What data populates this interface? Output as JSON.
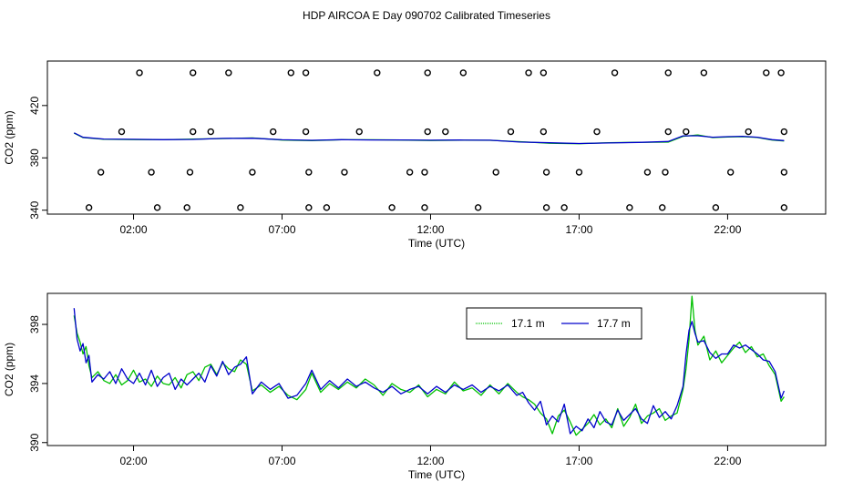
{
  "title": "HDP AIRCOA E  Day 090702  Calibrated Timeseries",
  "colors": {
    "series_17_1": "#00c000",
    "series_17_7": "#0000cc",
    "axis": "#000000"
  },
  "chart_data": [
    {
      "type": "line",
      "xlabel": "Time (UTC)",
      "ylabel": "CO2 (ppm)",
      "xlim": [
        -0.9,
        25.3
      ],
      "ylim": [
        337,
        454
      ],
      "xticks": [
        2,
        7,
        12,
        17,
        22
      ],
      "xtick_labels": [
        "02:00",
        "07:00",
        "12:00",
        "17:00",
        "22:00"
      ],
      "yticks": [
        340,
        380,
        420
      ],
      "ytick_labels": [
        "340",
        "380",
        "420"
      ],
      "grid": false,
      "series": [
        {
          "name": "17.1 m",
          "color": "#00c000",
          "x": [
            0.0,
            0.3,
            1.0,
            2.0,
            3.0,
            4.0,
            5.0,
            6.0,
            7.0,
            8.0,
            9.0,
            10.0,
            11.0,
            12.0,
            13.0,
            14.0,
            15.0,
            16.0,
            17.0,
            18.0,
            19.0,
            20.0,
            20.5,
            21.0,
            21.5,
            22.0,
            22.5,
            23.0,
            23.5,
            23.9
          ],
          "y": [
            399,
            395.5,
            394.2,
            394,
            393.8,
            394.3,
            394.7,
            395.2,
            393.6,
            393.2,
            393.8,
            393.8,
            393.6,
            393.3,
            393.5,
            393.4,
            392.4,
            391.2,
            390.8,
            391.6,
            391.9,
            392.0,
            396.5,
            397.5,
            395.5,
            396.0,
            396.2,
            395.6,
            393.6,
            392.9
          ]
        },
        {
          "name": "17.7 m",
          "color": "#0000cc",
          "x": [
            0.0,
            0.3,
            1.0,
            2.0,
            3.0,
            4.0,
            5.0,
            6.0,
            7.0,
            8.0,
            9.0,
            10.0,
            11.0,
            12.0,
            13.0,
            14.0,
            15.0,
            16.0,
            17.0,
            18.0,
            19.0,
            20.0,
            20.5,
            21.0,
            21.5,
            22.0,
            22.5,
            23.0,
            23.5,
            23.9
          ],
          "y": [
            399.1,
            395.7,
            394.4,
            394.2,
            393.9,
            394.1,
            394.9,
            395.0,
            393.8,
            393.4,
            393.9,
            393.7,
            393.7,
            393.5,
            393.6,
            393.5,
            392.1,
            391.5,
            391.0,
            391.4,
            391.8,
            392.5,
            396.8,
            396.9,
            395.8,
            396.2,
            396.5,
            395.8,
            393.9,
            393.2
          ]
        }
      ],
      "markers": {
        "x": [
          2.2,
          4.0,
          5.2,
          7.3,
          7.8,
          10.2,
          11.9,
          13.1,
          15.3,
          15.8,
          18.2,
          20.0,
          21.2,
          23.3,
          23.8,
          1.6,
          4.0,
          4.6,
          6.7,
          7.8,
          9.6,
          11.9,
          12.5,
          14.7,
          15.8,
          17.6,
          20.0,
          20.6,
          22.7,
          23.9,
          0.9,
          2.6,
          3.9,
          6.0,
          7.9,
          9.1,
          11.3,
          11.8,
          14.2,
          15.9,
          17.0,
          19.3,
          19.9,
          22.1,
          23.9,
          0.5,
          2.8,
          3.8,
          5.6,
          7.9,
          8.5,
          10.7,
          11.8,
          13.6,
          15.9,
          16.5,
          18.7,
          19.8,
          21.6,
          23.9
        ],
        "y": [
          445,
          445,
          445,
          445,
          445,
          445,
          445,
          445,
          445,
          445,
          445,
          445,
          445,
          445,
          445,
          400,
          400,
          400,
          400,
          400,
          400,
          400,
          400,
          400,
          400,
          400,
          400,
          400,
          400,
          400,
          369,
          369,
          369,
          369,
          369,
          369,
          369,
          369,
          369,
          369,
          369,
          369,
          369,
          369,
          369,
          342,
          342,
          342,
          342,
          342,
          342,
          342,
          342,
          342,
          342,
          342,
          342,
          342,
          342,
          342
        ]
      }
    },
    {
      "type": "line",
      "xlabel": "Time (UTC)",
      "ylabel": "CO2 (ppm)",
      "xlim": [
        -0.9,
        25.3
      ],
      "ylim": [
        389.8,
        400.1
      ],
      "xticks": [
        2,
        7,
        12,
        17,
        22
      ],
      "xtick_labels": [
        "02:00",
        "07:00",
        "12:00",
        "17:00",
        "22:00"
      ],
      "yticks": [
        390,
        394,
        398
      ],
      "ytick_labels": [
        "390",
        "394",
        "398"
      ],
      "grid": false,
      "legend": "top-center",
      "series": [
        {
          "name": "17.1 m",
          "color": "#00c000",
          "x": [
            0.0,
            0.1,
            0.2,
            0.3,
            0.4,
            0.5,
            0.6,
            0.8,
            1.0,
            1.2,
            1.4,
            1.6,
            1.8,
            2.0,
            2.2,
            2.4,
            2.6,
            2.8,
            3.0,
            3.2,
            3.4,
            3.6,
            3.8,
            4.0,
            4.2,
            4.4,
            4.6,
            4.8,
            5.0,
            5.2,
            5.4,
            5.6,
            5.8,
            6.0,
            6.3,
            6.6,
            6.9,
            7.2,
            7.5,
            7.8,
            8.0,
            8.3,
            8.6,
            8.9,
            9.2,
            9.5,
            9.8,
            10.1,
            10.4,
            10.7,
            11.0,
            11.3,
            11.6,
            11.9,
            12.2,
            12.5,
            12.8,
            13.1,
            13.4,
            13.7,
            14.0,
            14.3,
            14.6,
            14.9,
            15.1,
            15.3,
            15.5,
            15.7,
            15.9,
            16.1,
            16.3,
            16.5,
            16.7,
            16.9,
            17.1,
            17.3,
            17.5,
            17.7,
            17.9,
            18.1,
            18.3,
            18.5,
            18.7,
            18.9,
            19.1,
            19.3,
            19.5,
            19.7,
            19.9,
            20.1,
            20.3,
            20.5,
            20.6,
            20.7,
            20.8,
            20.9,
            21.0,
            21.2,
            21.4,
            21.6,
            21.8,
            22.0,
            22.2,
            22.4,
            22.6,
            22.8,
            23.0,
            23.2,
            23.4,
            23.6,
            23.8,
            23.9
          ],
          "y": [
            398.6,
            397.4,
            396.8,
            396.0,
            396.5,
            395.2,
            394.4,
            394.8,
            394.2,
            394.0,
            394.6,
            393.9,
            394.2,
            394.9,
            394.1,
            394.3,
            393.8,
            394.5,
            394.0,
            393.9,
            394.4,
            393.7,
            394.6,
            394.8,
            394.2,
            395.1,
            395.3,
            394.6,
            395.4,
            395.0,
            394.8,
            395.6,
            395.3,
            393.5,
            393.9,
            393.4,
            393.8,
            393.2,
            392.9,
            393.6,
            394.7,
            393.4,
            394.0,
            393.6,
            394.1,
            393.7,
            394.3,
            393.9,
            393.2,
            394.0,
            393.6,
            393.4,
            393.9,
            393.1,
            393.6,
            393.3,
            394.1,
            393.5,
            393.7,
            393.2,
            393.9,
            393.3,
            394.0,
            393.4,
            393.1,
            392.9,
            392.6,
            392.0,
            391.6,
            390.6,
            391.8,
            392.2,
            391.4,
            390.5,
            390.9,
            391.3,
            391.9,
            391.2,
            391.6,
            391.0,
            392.3,
            391.1,
            391.7,
            392.6,
            391.3,
            391.8,
            392.0,
            392.3,
            391.5,
            391.8,
            392.0,
            393.6,
            395.0,
            397.0,
            399.9,
            397.6,
            396.6,
            397.2,
            395.6,
            396.2,
            395.4,
            395.9,
            396.4,
            396.8,
            396.1,
            396.5,
            395.8,
            396.0,
            395.2,
            394.6,
            392.8,
            393.1
          ]
        },
        {
          "name": "17.7 m",
          "color": "#0000cc",
          "x": [
            0.0,
            0.1,
            0.2,
            0.3,
            0.4,
            0.5,
            0.6,
            0.8,
            1.0,
            1.2,
            1.4,
            1.6,
            1.8,
            2.0,
            2.2,
            2.4,
            2.6,
            2.8,
            3.0,
            3.2,
            3.4,
            3.6,
            3.8,
            4.0,
            4.2,
            4.4,
            4.6,
            4.8,
            5.0,
            5.2,
            5.4,
            5.6,
            5.8,
            6.0,
            6.3,
            6.6,
            6.9,
            7.2,
            7.5,
            7.8,
            8.0,
            8.3,
            8.6,
            8.9,
            9.2,
            9.5,
            9.8,
            10.1,
            10.4,
            10.7,
            11.0,
            11.3,
            11.6,
            11.9,
            12.2,
            12.5,
            12.8,
            13.1,
            13.4,
            13.7,
            14.0,
            14.3,
            14.6,
            14.9,
            15.1,
            15.3,
            15.5,
            15.7,
            15.9,
            16.1,
            16.3,
            16.5,
            16.7,
            16.9,
            17.1,
            17.3,
            17.5,
            17.7,
            17.9,
            18.1,
            18.3,
            18.5,
            18.7,
            18.9,
            19.1,
            19.3,
            19.5,
            19.7,
            19.9,
            20.1,
            20.3,
            20.5,
            20.6,
            20.7,
            20.8,
            20.9,
            21.0,
            21.2,
            21.4,
            21.6,
            21.8,
            22.0,
            22.2,
            22.4,
            22.6,
            22.8,
            23.0,
            23.2,
            23.4,
            23.6,
            23.8,
            23.9
          ],
          "y": [
            399.1,
            397.0,
            396.2,
            396.7,
            395.4,
            395.9,
            394.1,
            394.6,
            394.3,
            394.8,
            394.0,
            395.0,
            394.3,
            394.0,
            394.7,
            393.9,
            394.9,
            393.8,
            394.4,
            394.7,
            393.6,
            394.3,
            393.9,
            394.3,
            394.7,
            394.1,
            395.2,
            394.5,
            395.5,
            394.6,
            395.1,
            395.3,
            395.8,
            393.3,
            394.1,
            393.6,
            394.0,
            393.0,
            393.2,
            394.0,
            394.9,
            393.6,
            394.2,
            393.7,
            394.3,
            393.8,
            394.1,
            393.7,
            393.4,
            393.8,
            393.3,
            393.6,
            393.8,
            393.3,
            393.8,
            393.4,
            393.9,
            393.6,
            393.9,
            393.4,
            393.8,
            393.5,
            393.9,
            393.2,
            393.4,
            392.7,
            392.2,
            392.8,
            391.2,
            391.8,
            391.4,
            392.6,
            390.6,
            391.1,
            390.8,
            391.6,
            391.0,
            392.1,
            391.4,
            391.2,
            392.2,
            391.5,
            391.9,
            392.3,
            391.6,
            391.3,
            392.5,
            391.7,
            392.1,
            391.6,
            392.5,
            393.8,
            396.0,
            397.6,
            398.2,
            397.4,
            396.8,
            396.9,
            396.1,
            395.7,
            396.0,
            396.0,
            396.6,
            396.4,
            396.6,
            396.3,
            396.0,
            395.6,
            395.5,
            394.8,
            393.0,
            393.5
          ]
        }
      ]
    }
  ]
}
